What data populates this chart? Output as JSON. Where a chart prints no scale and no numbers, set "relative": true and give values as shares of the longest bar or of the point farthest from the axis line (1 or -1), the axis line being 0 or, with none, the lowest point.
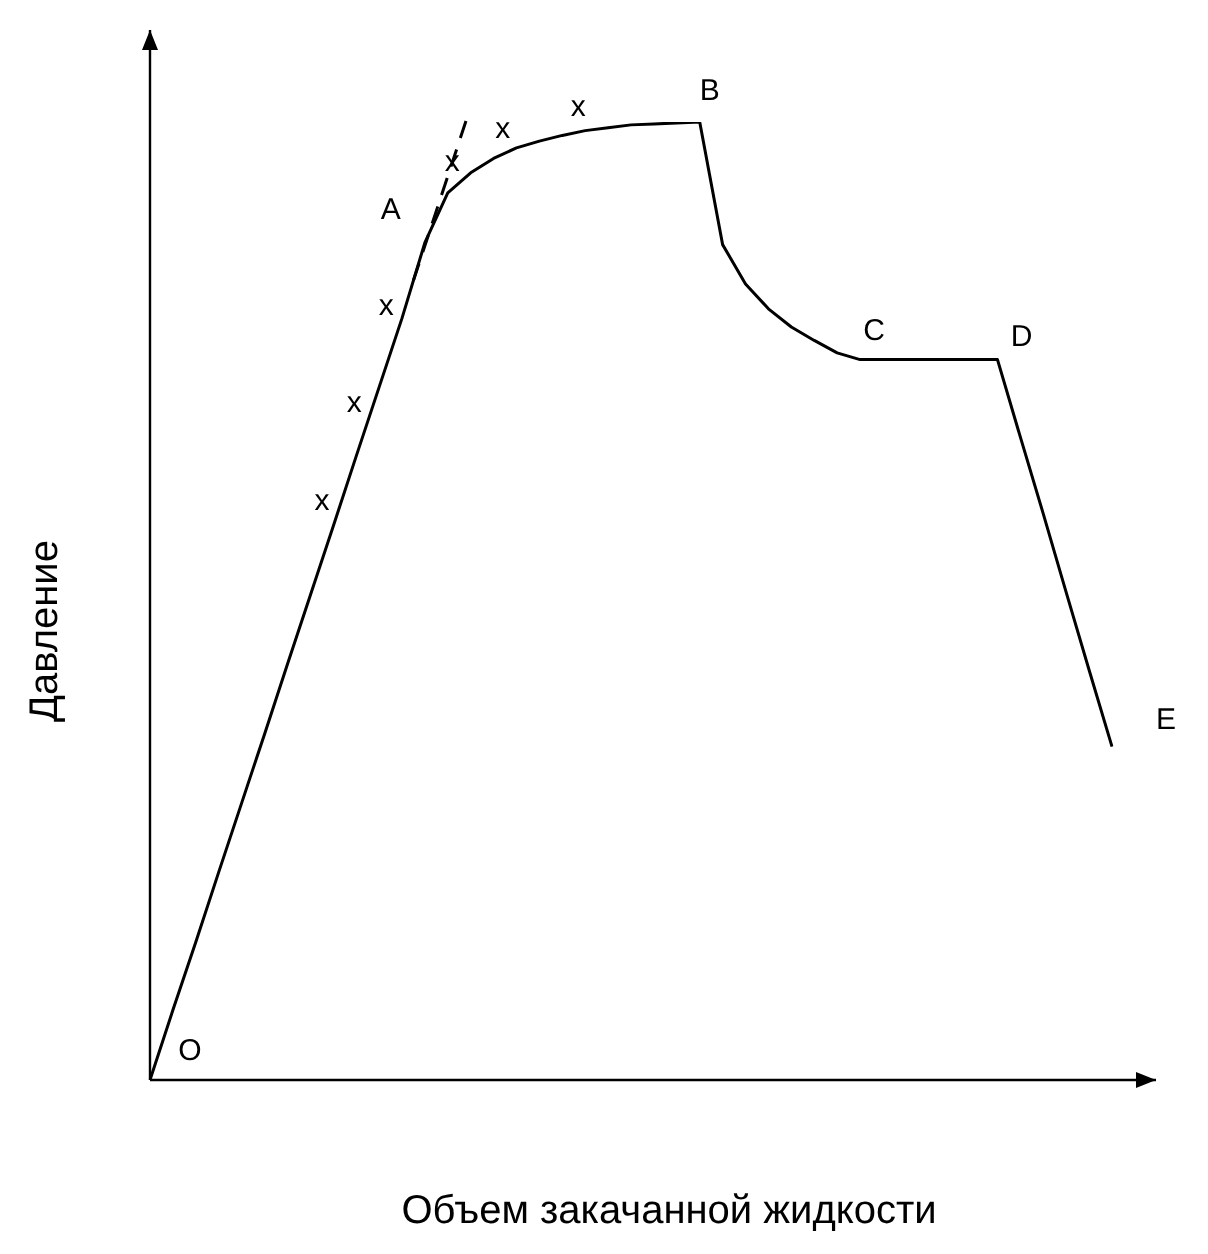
{
  "chart_data": {
    "type": "line",
    "relative": true,
    "xlabel": "Объем закачанной жидкости",
    "ylabel": "Давление",
    "legend": false,
    "marker": "none",
    "line_style": "solid",
    "categories": [
      null,
      null,
      null,
      null,
      null,
      null,
      null,
      null,
      null,
      null,
      null,
      null,
      null,
      null,
      null,
      null,
      null,
      null,
      null,
      null,
      null,
      null,
      null,
      null,
      null,
      null,
      null,
      null,
      null,
      null,
      null,
      null,
      null,
      null,
      null,
      null,
      null,
      null,
      null,
      null,
      null,
      null,
      null
    ],
    "series": [
      {
        "color": "#000000",
        "values": [
          0,
          0.073,
          0.144,
          0.217,
          0.289,
          0.361,
          0.434,
          0.506,
          0.578,
          0.651,
          0.723,
          0.795,
          0.874,
          0.926,
          0.947,
          0.962,
          0.973,
          0.98,
          0.986,
          0.991,
          0.994,
          0.997,
          0.998,
          0.999,
          1,
          0.872,
          0.831,
          0.805,
          0.786,
          0.772,
          0.759,
          0.752,
          0.752,
          0.752,
          0.752,
          0.752,
          0.752,
          0.752,
          0.671,
          0.591,
          0.509,
          0.428,
          0.348
        ]
      }
    ],
    "annotations": [
      "O",
      "A",
      "B",
      "C",
      "D",
      "E",
      "x",
      "x",
      "x",
      "x",
      "x",
      "x"
    ]
  }
}
